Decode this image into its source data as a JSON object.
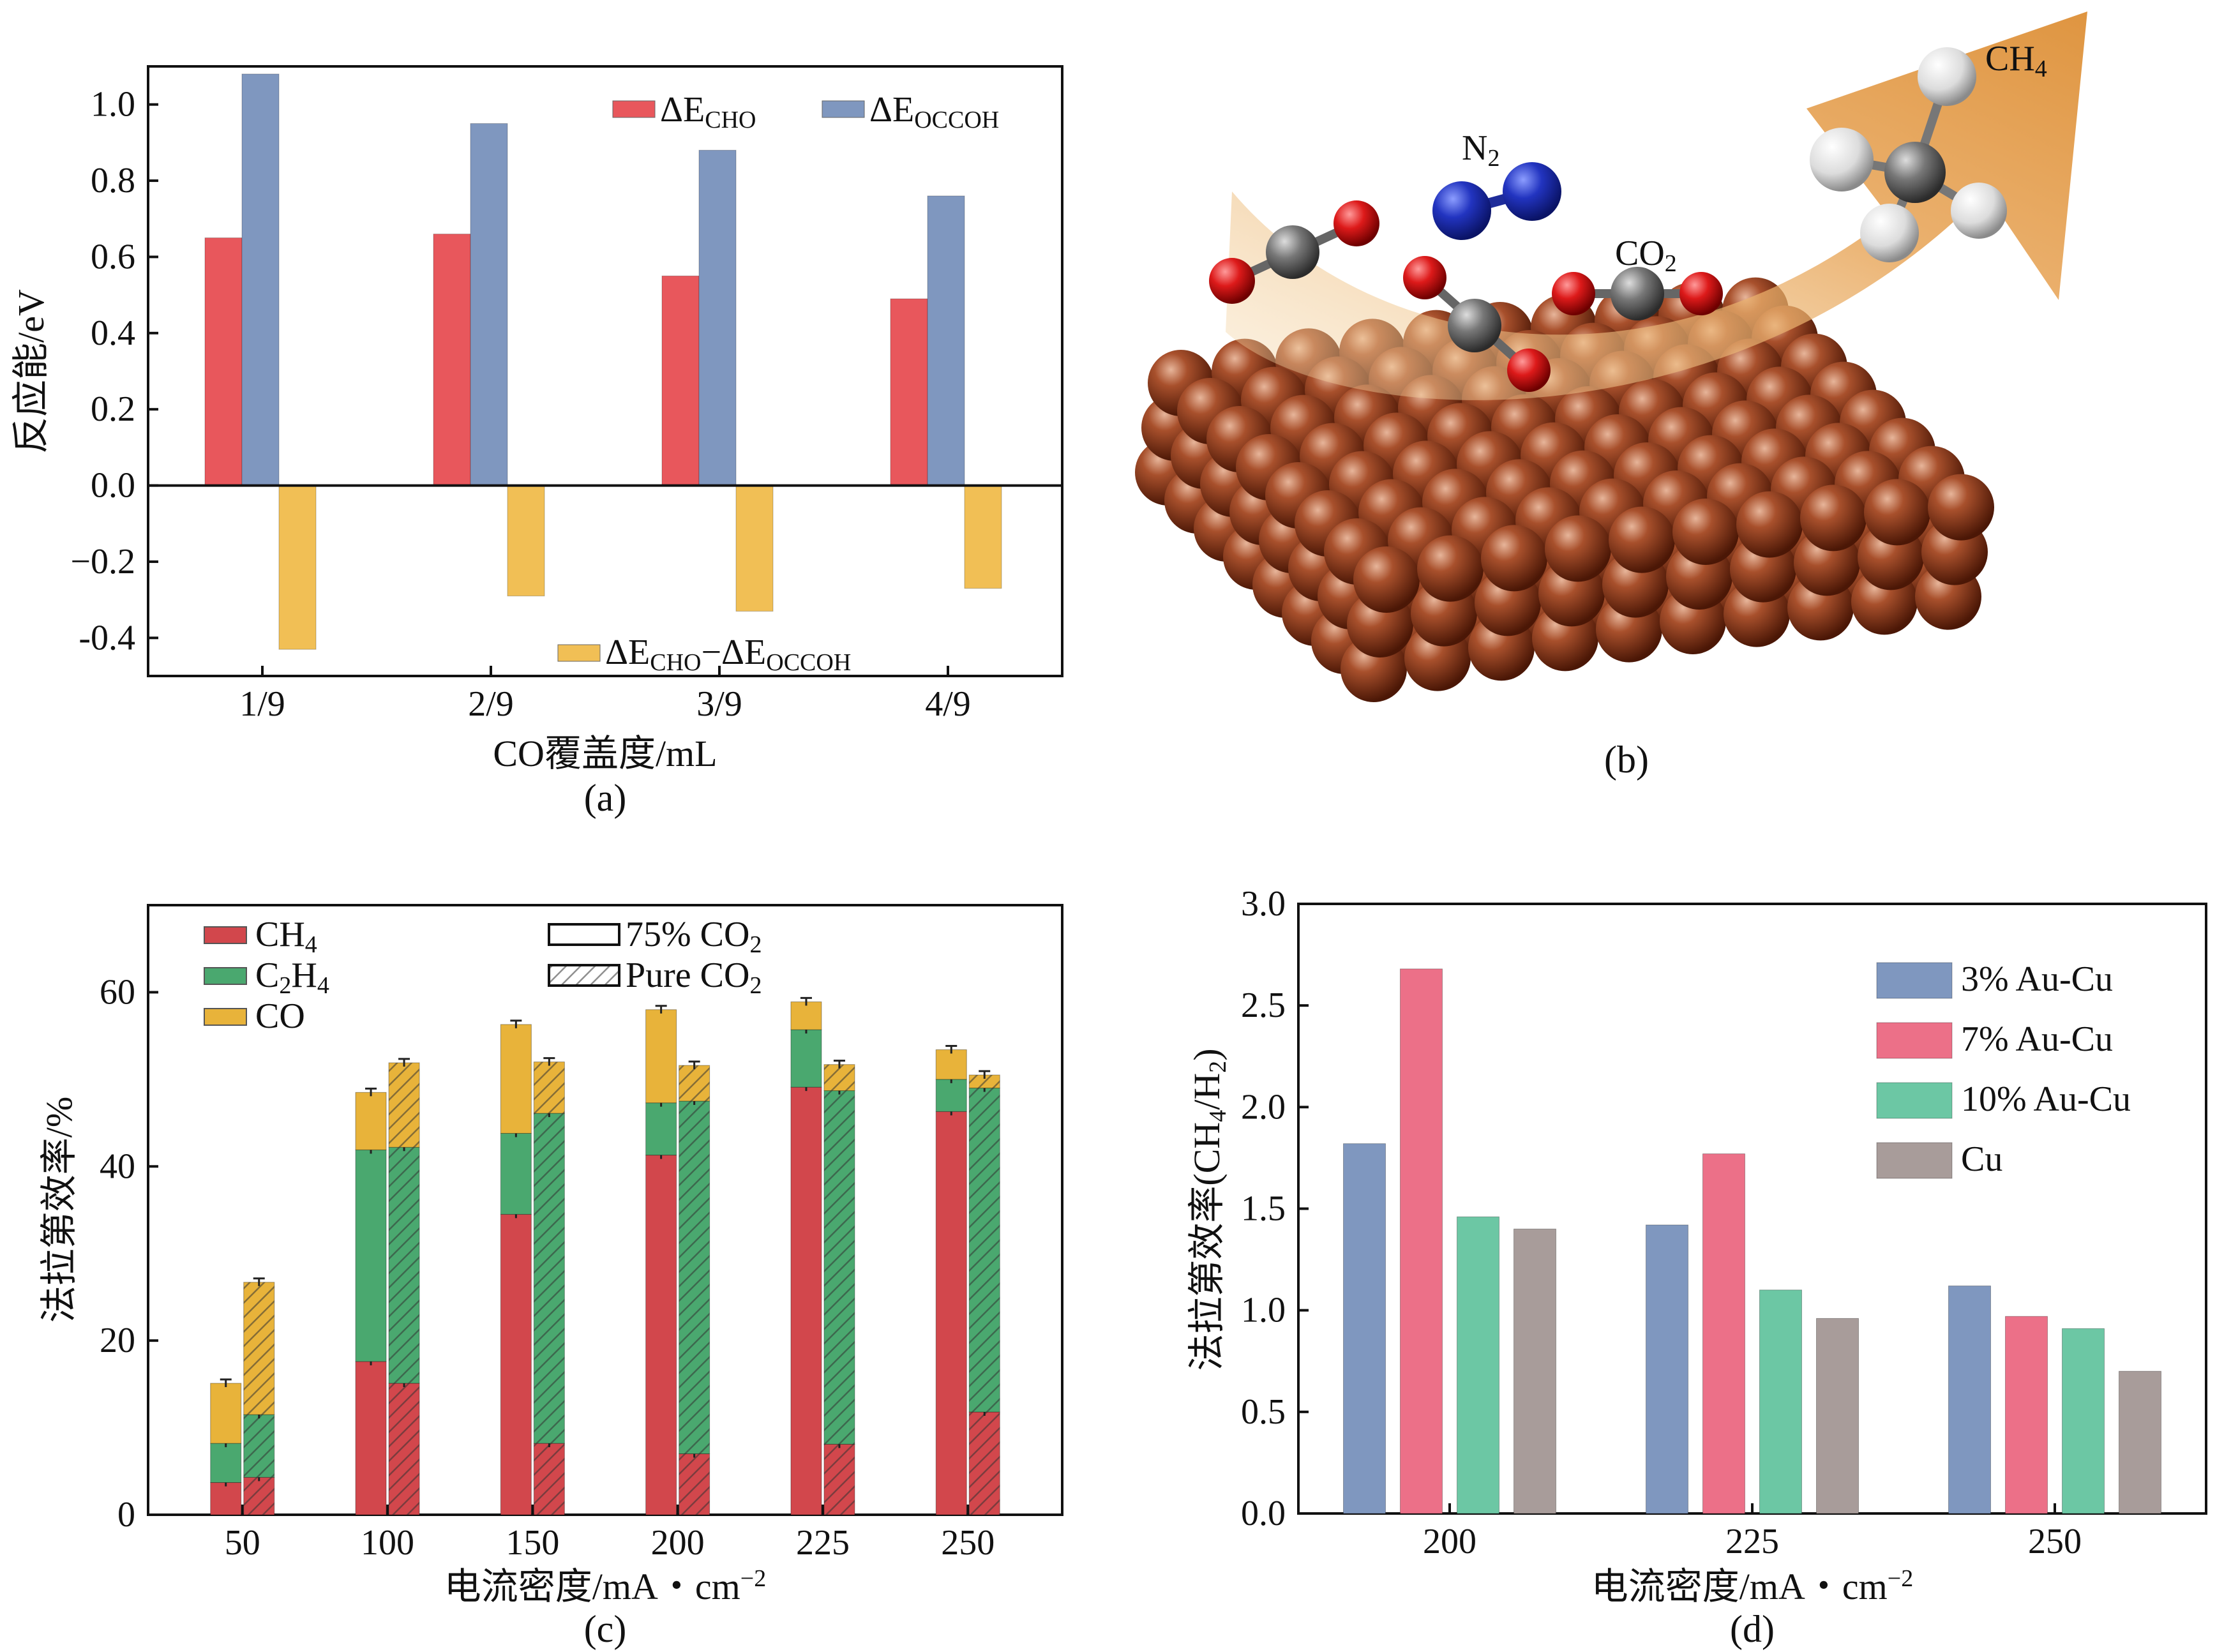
{
  "figure": {
    "captions": [
      "(a)",
      "(b)",
      "(c)",
      "(d)"
    ]
  },
  "colors": {
    "red": "#e8575c",
    "blue": "#7f97bf",
    "orange": "#f1bf55",
    "dark_red": "#d2474c",
    "green": "#4aa86f",
    "gold": "#e8b33a",
    "pink": "#ec7088",
    "teal": "#6cc7a4",
    "gray": "#a89c9a",
    "copper": "#8c3a1e",
    "arrow": "#e2a150",
    "n2": "#1e35b0",
    "o_atom": "#cc1111",
    "c_atom": "#6e6e6e"
  },
  "panel_b": {
    "labels": {
      "ch4": "CH",
      "ch4_sub": "4",
      "n2": "N",
      "n2_sub": "2",
      "co2": "CO",
      "co2_sub": "2"
    },
    "icon": "copper-surface-reaction-illustration"
  },
  "chart_data": [
    {
      "panel": "a",
      "type": "bar",
      "categories": [
        "1/9",
        "2/9",
        "3/9",
        "4/9"
      ],
      "series": [
        {
          "name": "ΔE_CHO",
          "values": [
            0.65,
            0.66,
            0.55,
            0.49
          ]
        },
        {
          "name": "ΔE_OCCOH",
          "values": [
            1.08,
            0.95,
            0.88,
            0.76
          ]
        },
        {
          "name": "ΔE_CHO−ΔE_OCCOH",
          "values": [
            -0.43,
            -0.29,
            -0.33,
            -0.27
          ]
        }
      ],
      "legend": [
        {
          "main": "ΔE",
          "sub": "CHO"
        },
        {
          "main": "ΔE",
          "sub": "OCCOH"
        },
        {
          "main": "ΔE",
          "sub": "CHO",
          "main2": "−ΔE",
          "sub2": "OCCOH"
        }
      ],
      "xlabel": "CO覆盖度/mL",
      "ylabel": "反应能/eV",
      "ylim": [
        -0.5,
        1.1
      ],
      "yticks": [
        -0.4,
        -0.2,
        0.0,
        0.2,
        0.4,
        0.6,
        0.8,
        1.0
      ],
      "ytick_labels": [
        "-0.4",
        "−0.2",
        "0.0",
        "0.2",
        "0.4",
        "0.6",
        "0.8",
        "1.0"
      ]
    },
    {
      "panel": "c",
      "type": "bar",
      "stacked": true,
      "categories": [
        "50",
        "100",
        "150",
        "200",
        "225",
        "250"
      ],
      "groups": [
        "75% CO2",
        "Pure CO2"
      ],
      "series": [
        {
          "name": "CH4",
          "values_75": [
            3.7,
            17.6,
            34.5,
            41.3,
            49.1,
            46.3
          ],
          "values_pure": [
            4.3,
            15.1,
            8.2,
            7.0,
            8.1,
            11.8
          ]
        },
        {
          "name": "C2H4",
          "values_75": [
            4.5,
            24.3,
            9.3,
            6.0,
            6.6,
            3.7
          ],
          "values_pure": [
            7.2,
            27.1,
            37.9,
            40.5,
            40.6,
            37.2
          ]
        },
        {
          "name": "CO",
          "values_75": [
            6.9,
            6.6,
            12.5,
            10.7,
            3.2,
            3.4
          ],
          "values_pure": [
            15.2,
            9.7,
            5.9,
            4.1,
            3.0,
            1.5
          ]
        }
      ],
      "legend": [
        {
          "main": "CH",
          "sub": "4"
        },
        {
          "main": "C",
          "sub": "2",
          "main2": "H",
          "sub2": "4"
        },
        {
          "main": "CO"
        },
        {
          "main": "75% CO",
          "sub": "2"
        },
        {
          "main": "Pure CO",
          "sub": "2"
        }
      ],
      "xlabel": "电流密度/mA・cm",
      "xlabel_sup": "−2",
      "ylabel": "法拉第效率/%",
      "ylim": [
        0,
        70
      ],
      "yticks": [
        0,
        20,
        40,
        60
      ],
      "ytick_labels": [
        "0",
        "20",
        "40",
        "60"
      ]
    },
    {
      "panel": "d",
      "type": "bar",
      "categories": [
        "200",
        "225",
        "250"
      ],
      "series": [
        {
          "name": "3% Au-Cu",
          "values": [
            1.82,
            1.42,
            1.12
          ]
        },
        {
          "name": "7% Au-Cu",
          "values": [
            2.68,
            1.77,
            0.97
          ]
        },
        {
          "name": "10% Au-Cu",
          "values": [
            1.46,
            1.1,
            0.91
          ]
        },
        {
          "name": "Cu",
          "values": [
            1.4,
            0.96,
            0.7
          ]
        }
      ],
      "xlabel": "电流密度/mA・cm",
      "xlabel_sup": "−2",
      "ylabel": "法拉第效率(CH",
      "ylabel_sub": "4",
      "ylabel_mid": "/H",
      "ylabel_sub2": "2",
      "ylabel_end": ")",
      "ylim": [
        0,
        3.0
      ],
      "yticks": [
        0.0,
        0.5,
        1.0,
        1.5,
        2.0,
        2.5,
        3.0
      ],
      "ytick_labels": [
        "0.0",
        "0.5",
        "1.0",
        "1.5",
        "2.0",
        "2.5",
        "3.0"
      ]
    }
  ]
}
